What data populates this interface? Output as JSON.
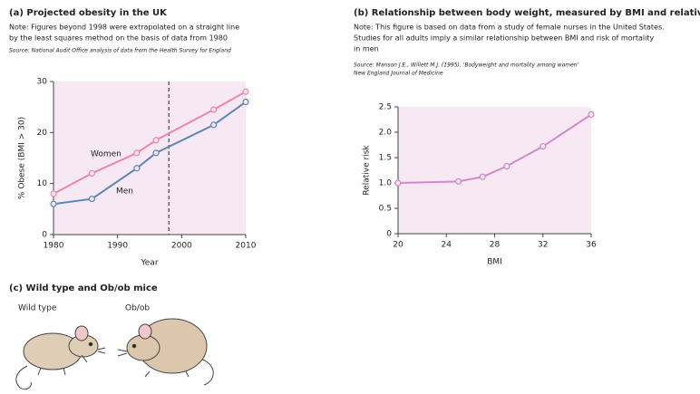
{
  "chart_data": [
    {
      "type": "line",
      "title": "(a) Projected obesity in the UK",
      "note": [
        "Note: Figures beyond 1998 were extrapolated on a straight line",
        "by the least squares method on the basis of data from 1980"
      ],
      "source": "Source: National Audit Office analysis of data from the Health Survey for England",
      "xlabel": "Year",
      "ylabel": "% Obese (BMI > 30)",
      "x": [
        1980,
        1986,
        1993,
        1996,
        2005,
        2010
      ],
      "series": [
        {
          "name": "Women",
          "color": "#ef86a6",
          "values": [
            8,
            12,
            16,
            18.5,
            24.5,
            28
          ]
        },
        {
          "name": "Men",
          "color": "#5a86b8",
          "values": [
            6,
            7,
            13,
            16,
            21.5,
            26
          ]
        }
      ],
      "xlim": [
        1980,
        2010
      ],
      "xticks": [
        1980,
        1990,
        2000,
        2010
      ],
      "ylim": [
        0,
        30
      ],
      "yticks": [
        0,
        10,
        20,
        30
      ],
      "projection_start": 1998
    },
    {
      "type": "line",
      "title": "(b) Relationship between body weight, measured by BMI and relative risk",
      "note": [
        "Note: This figure is based on data from a study of female nurses in the United States.",
        "Studies for all adults imply a similar relationship between BMI and risk of mortality",
        "in men"
      ],
      "source": [
        "Source: Manson J.E., Willett M.J. (1995). 'Bodyweight and mortality among women'",
        "New England Journal of Medicine"
      ],
      "xlabel": "BMI",
      "ylabel": "Relative risk",
      "x": [
        20,
        25,
        27,
        29,
        32,
        36
      ],
      "values": [
        1.0,
        1.03,
        1.12,
        1.33,
        1.72,
        2.35
      ],
      "color": "#d08ac8",
      "xlim": [
        20,
        36
      ],
      "xticks": [
        20,
        24,
        28,
        32,
        36
      ],
      "ylim": [
        0,
        2.5
      ],
      "yticks": [
        0,
        0.5,
        {
          "value": 1,
          "label": "1.0"
        },
        1.5,
        {
          "value": 2,
          "label": "2.0"
        },
        2.5
      ]
    }
  ],
  "panel_c": {
    "title": "(c) Wild type and Ob/ob mice",
    "labels": [
      "Wild type",
      "Ob/ob"
    ]
  }
}
